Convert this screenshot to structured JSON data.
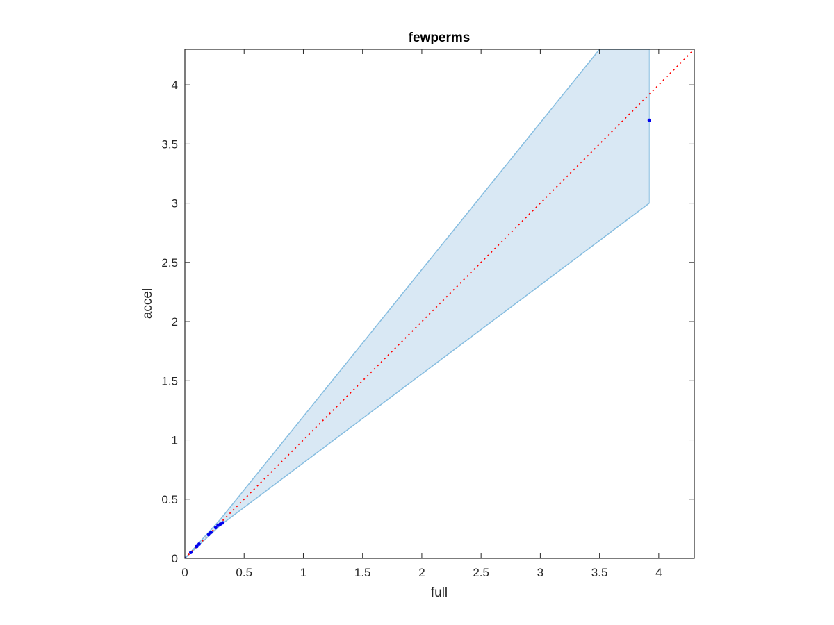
{
  "chart_data": {
    "type": "scatter",
    "title": "fewperms",
    "xlabel": "full",
    "ylabel": "accel",
    "xlim": [
      0,
      4.3
    ],
    "ylim": [
      0,
      4.3
    ],
    "xticks": [
      0,
      0.5,
      1,
      1.5,
      2,
      2.5,
      3,
      3.5,
      4
    ],
    "xtick_labels": [
      "0",
      "0.5",
      "1",
      "1.5",
      "2",
      "2.5",
      "3",
      "3.5",
      "4"
    ],
    "yticks": [
      0,
      0.5,
      1,
      1.5,
      2,
      2.5,
      3,
      3.5,
      4
    ],
    "ytick_labels": [
      "0",
      "0.5",
      "1",
      "1.5",
      "2",
      "2.5",
      "3",
      "3.5",
      "4"
    ],
    "grid": false,
    "band": {
      "upper": [
        [
          0,
          0
        ],
        [
          0.3,
          0.33
        ],
        [
          3.5,
          4.3
        ],
        [
          3.92,
          4.3
        ]
      ],
      "lower": [
        [
          0,
          0
        ],
        [
          0.3,
          0.28
        ],
        [
          3.92,
          3.0
        ]
      ],
      "fill_color": "#d9e8f4",
      "edge_color": "#86bde0"
    },
    "identity_line": {
      "x": [
        0,
        4.3
      ],
      "y": [
        0,
        4.3
      ],
      "color": "#ff0000",
      "style": "dotted"
    },
    "points": {
      "color": "#0000ee",
      "x": [
        0.0,
        0.05,
        0.1,
        0.12,
        0.2,
        0.22,
        0.26,
        0.28,
        0.3,
        0.32,
        3.92
      ],
      "y": [
        0.0,
        0.05,
        0.1,
        0.12,
        0.2,
        0.22,
        0.26,
        0.28,
        0.29,
        0.3,
        3.7
      ]
    }
  }
}
